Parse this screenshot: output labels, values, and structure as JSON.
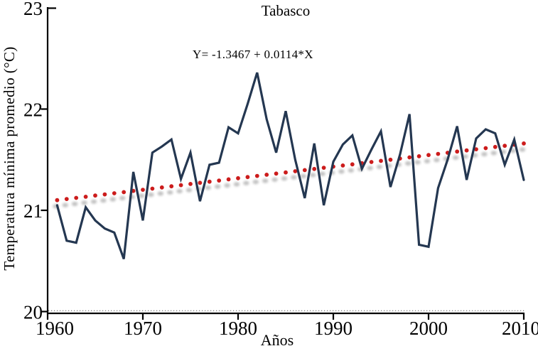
{
  "title": "Tabasco",
  "annotation": "Y= -1.3467 + 0.0114*X",
  "x_axis_label": "Años",
  "y_axis_label": "Temperatura mínima promedio (°C)",
  "colors": {
    "series_line": "#243751",
    "trend_dots": "#cc1c1c",
    "trend_shadow": "#8f8f8f",
    "axis": "#000000"
  },
  "chart_data": {
    "type": "line",
    "title": "Tabasco",
    "xlabel": "Años",
    "ylabel": "Temperatura mínima promedio (°C)",
    "annotation": "Y= -1.3467 + 0.0114*X",
    "xlim": [
      1960,
      2010.5
    ],
    "ylim": [
      20,
      23
    ],
    "x_ticks": [
      1960,
      1970,
      1980,
      1990,
      2000,
      2010
    ],
    "y_ticks": [
      20,
      21,
      22,
      23
    ],
    "grid": "dotted baseline at y=20 only",
    "legend": "none",
    "series": [
      {
        "name": "sombra-tendencia",
        "style": "dotted-blur",
        "color": "#8f8f8f",
        "x": [
          1961,
          2010
        ],
        "y": [
          21.04,
          21.6
        ]
      },
      {
        "name": "linea-tendencia",
        "style": "dotted",
        "color": "#cc1c1c",
        "equation": "Y= -1.3467 + 0.0114*X",
        "x": [
          1961,
          2010
        ],
        "y": [
          21.1,
          21.66
        ]
      },
      {
        "name": "temperatura-minima-anual",
        "style": "solid-line",
        "color": "#243751",
        "x": [
          1961,
          1962,
          1963,
          1964,
          1965,
          1966,
          1967,
          1968,
          1969,
          1970,
          1971,
          1972,
          1973,
          1974,
          1975,
          1976,
          1977,
          1978,
          1979,
          1980,
          1981,
          1982,
          1983,
          1984,
          1985,
          1986,
          1987,
          1988,
          1989,
          1990,
          1991,
          1992,
          1993,
          1994,
          1995,
          1996,
          1997,
          1998,
          1999,
          2000,
          2001,
          2002,
          2003,
          2004,
          2005,
          2006,
          2007,
          2008,
          2009,
          2010
        ],
        "y": [
          21.05,
          20.7,
          20.68,
          21.03,
          20.9,
          20.82,
          20.78,
          20.52,
          21.38,
          20.9,
          21.57,
          21.63,
          21.7,
          21.31,
          21.57,
          21.09,
          21.45,
          21.47,
          21.82,
          21.76,
          22.05,
          22.36,
          21.9,
          21.57,
          21.98,
          21.5,
          21.12,
          21.66,
          21.05,
          21.48,
          21.65,
          21.74,
          21.41,
          21.6,
          21.78,
          21.23,
          21.55,
          21.95,
          20.66,
          20.64,
          21.22,
          21.5,
          21.83,
          21.3,
          21.71,
          21.8,
          21.76,
          21.45,
          21.7,
          21.3
        ]
      }
    ]
  }
}
